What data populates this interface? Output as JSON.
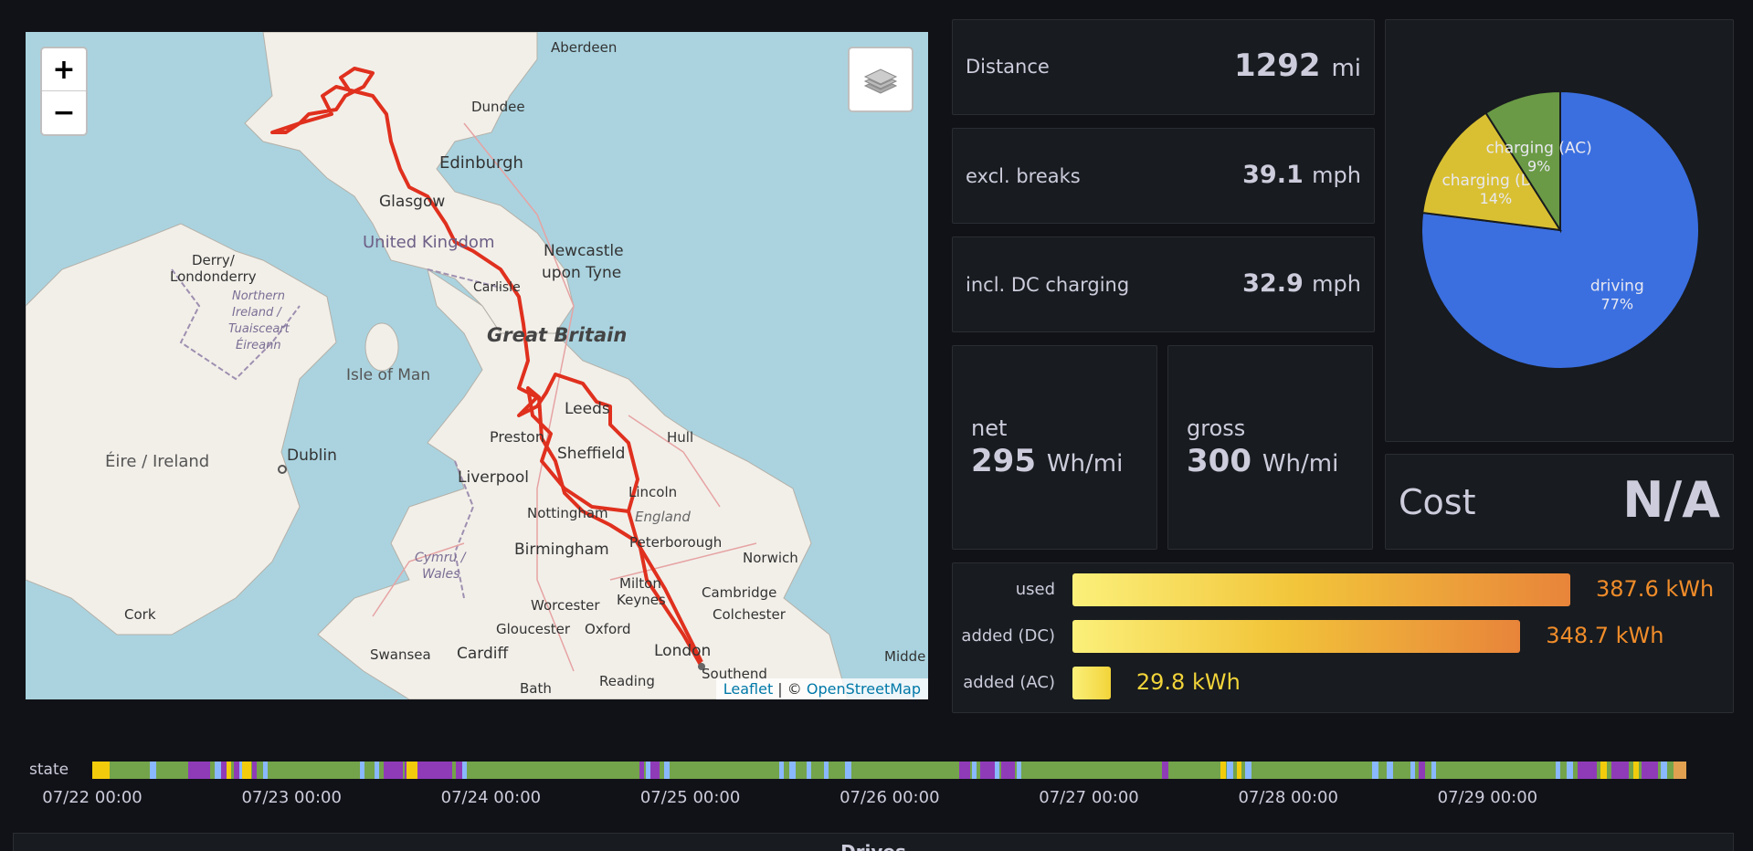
{
  "map": {
    "zoom_in": "+",
    "zoom_out": "−",
    "attribution_leaflet": "Leaflet",
    "attribution_sep": " | © ",
    "attribution_osm": "OpenStreetMap",
    "labels": {
      "aberdeen": "Aberdeen",
      "dundee": "Dundee",
      "edinburgh": "Edinburgh",
      "glasgow": "Glasgow",
      "uk": "United Kingdom",
      "newcastle1": "Newcastle",
      "newcastle2": "upon Tyne",
      "derry1": "Derry/",
      "derry2": "Londonderry",
      "ni1": "Northern",
      "ni2": "Ireland /",
      "ni3": "Tuaisceart",
      "ni4": "Éireann",
      "carlisle": "Carlisle",
      "gb": "Great Britain",
      "isle_of_man": "Isle of Man",
      "leeds": "Leeds",
      "hull": "Hull",
      "preston": "Preston",
      "sheffield": "Sheffield",
      "eire": "Éire / Ireland",
      "dublin": "Dublin",
      "liverpool": "Liverpool",
      "lincoln": "Lincoln",
      "nottingham": "Nottingham",
      "england": "England",
      "cymru1": "Cymru /",
      "cymru2": "Wales",
      "birmingham": "Birmingham",
      "peterborough": "Peterborough",
      "norwich": "Norwich",
      "milton1": "Milton",
      "milton2": "Keynes",
      "cambridge": "Cambridge",
      "cork": "Cork",
      "worcester": "Worcester",
      "colchester": "Colchester",
      "gloucester": "Gloucester",
      "oxford": "Oxford",
      "swansea": "Swansea",
      "cardiff": "Cardiff",
      "london": "London",
      "middle": "Midde",
      "bath": "Bath",
      "reading": "Reading",
      "southend": "Southend"
    }
  },
  "stats": {
    "distance": {
      "label": "Distance",
      "value": "1292",
      "unit": "mi"
    },
    "excl_breaks": {
      "label": "excl. breaks",
      "value": "39.1",
      "unit": "mph"
    },
    "incl_dc": {
      "label": "incl. DC charging",
      "value": "32.9",
      "unit": "mph"
    },
    "net": {
      "label": "net",
      "value": "295",
      "unit": "Wh/mi"
    },
    "gross": {
      "label": "gross",
      "value": "300",
      "unit": "Wh/mi"
    },
    "cost": {
      "label": "Cost",
      "value": "N/A"
    }
  },
  "chart_data": [
    {
      "type": "pie",
      "slices": [
        {
          "name": "driving",
          "value": 77,
          "label": "77%",
          "color": "#3b6fe0"
        },
        {
          "name": "charging (DC)",
          "value": 14,
          "label": "14%",
          "color": "#d9c033"
        },
        {
          "name": "charging (AC)",
          "value": 9,
          "label": "9%",
          "color": "#6a9a45"
        }
      ]
    },
    {
      "type": "bar",
      "orientation": "horizontal",
      "unit": "kWh",
      "max": 387.6,
      "rows": [
        {
          "label": "used",
          "value": 387.6,
          "text": "387.6 kWh",
          "color": "#e8843a"
        },
        {
          "label": "added (DC)",
          "value": 348.7,
          "text": "348.7 kWh",
          "color": "#e8843a"
        },
        {
          "label": "added (AC)",
          "value": 29.8,
          "text": "29.8 kWh",
          "color": "#f2d43a"
        }
      ]
    }
  ],
  "timeline": {
    "label": "state",
    "ticks": [
      "07/22 00:00",
      "07/23 00:00",
      "07/24 00:00",
      "07/25 00:00",
      "07/26 00:00",
      "07/27 00:00",
      "07/28 00:00",
      "07/29 00:00"
    ],
    "colors": {
      "driving": "#73a34a",
      "charging": "#8f3bb8",
      "asleep": "#8ab8ff",
      "online": "#f2cc0c",
      "other": "#e0a050"
    }
  },
  "drives_panel": {
    "title": "Drives"
  }
}
